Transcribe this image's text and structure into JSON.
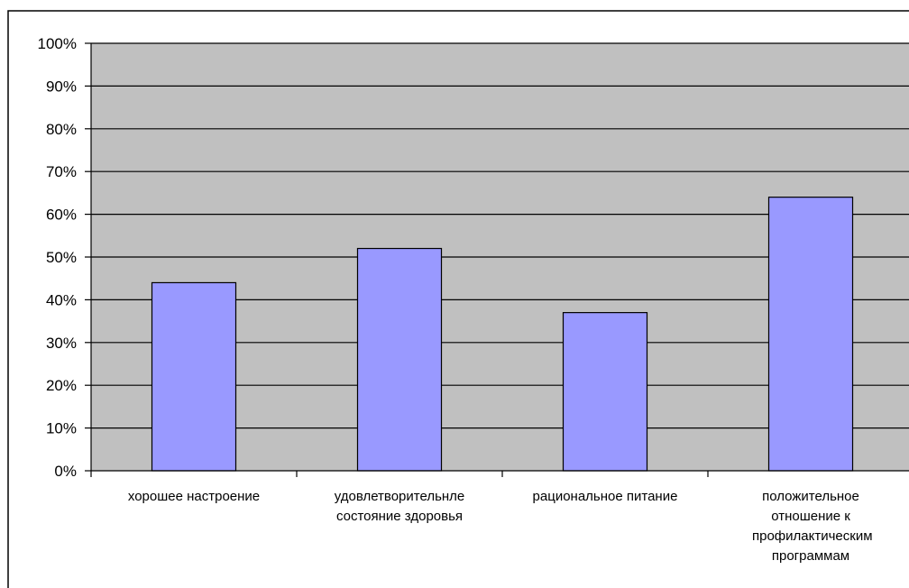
{
  "chart_data": {
    "type": "bar",
    "title": "",
    "xlabel": "",
    "ylabel": "",
    "categories": [
      "хорошее настроение",
      "удовлетворительнле состояние здоровья",
      "рациональное питание",
      "положительное отношение к профилактическим программам"
    ],
    "values": [
      44,
      52,
      37,
      64
    ],
    "ylim": [
      0,
      100
    ],
    "y_ticks": [
      "0%",
      "10%",
      "20%",
      "30%",
      "40%",
      "50%",
      "60%",
      "70%",
      "80%",
      "90%",
      "100%"
    ],
    "grid": true,
    "legend": "none",
    "colors": {
      "plot_background": "#c0c0c0",
      "bar_fill": "#9999ff",
      "bar_stroke": "#000000",
      "gridline": "#000000",
      "frame": "#000000"
    }
  }
}
